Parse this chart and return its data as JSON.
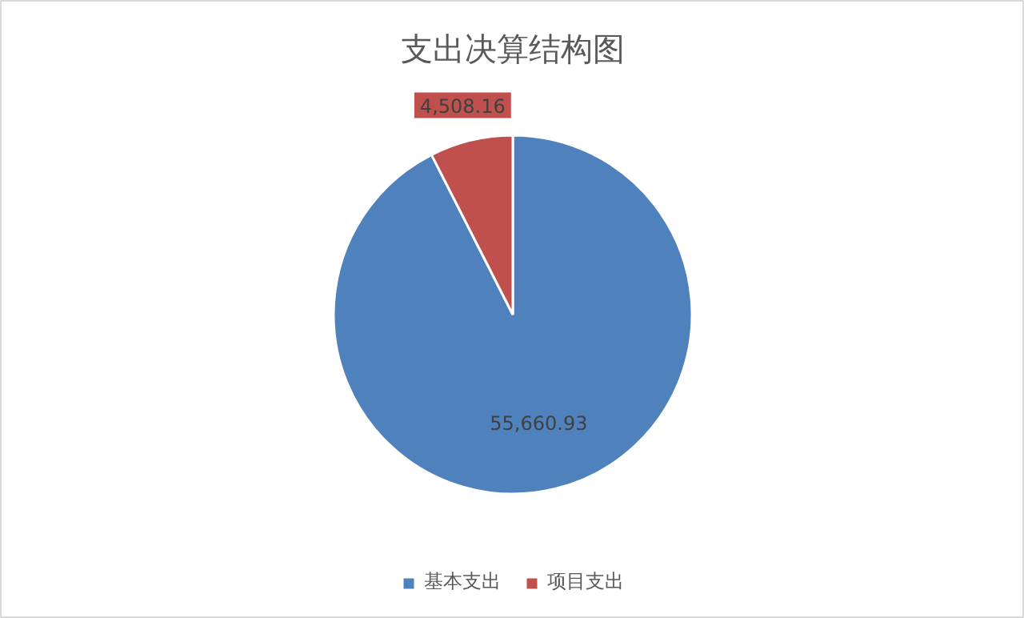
{
  "chart_data": {
    "type": "pie",
    "title": "支出决算结构图",
    "categories": [
      "基本支出",
      "项目支出"
    ],
    "values": [
      55660.93,
      4508.16
    ],
    "value_labels": [
      "55,660.93",
      "4,508.16"
    ],
    "colors": [
      "#4f81bd",
      "#c0504d"
    ],
    "legend": "bottom"
  }
}
